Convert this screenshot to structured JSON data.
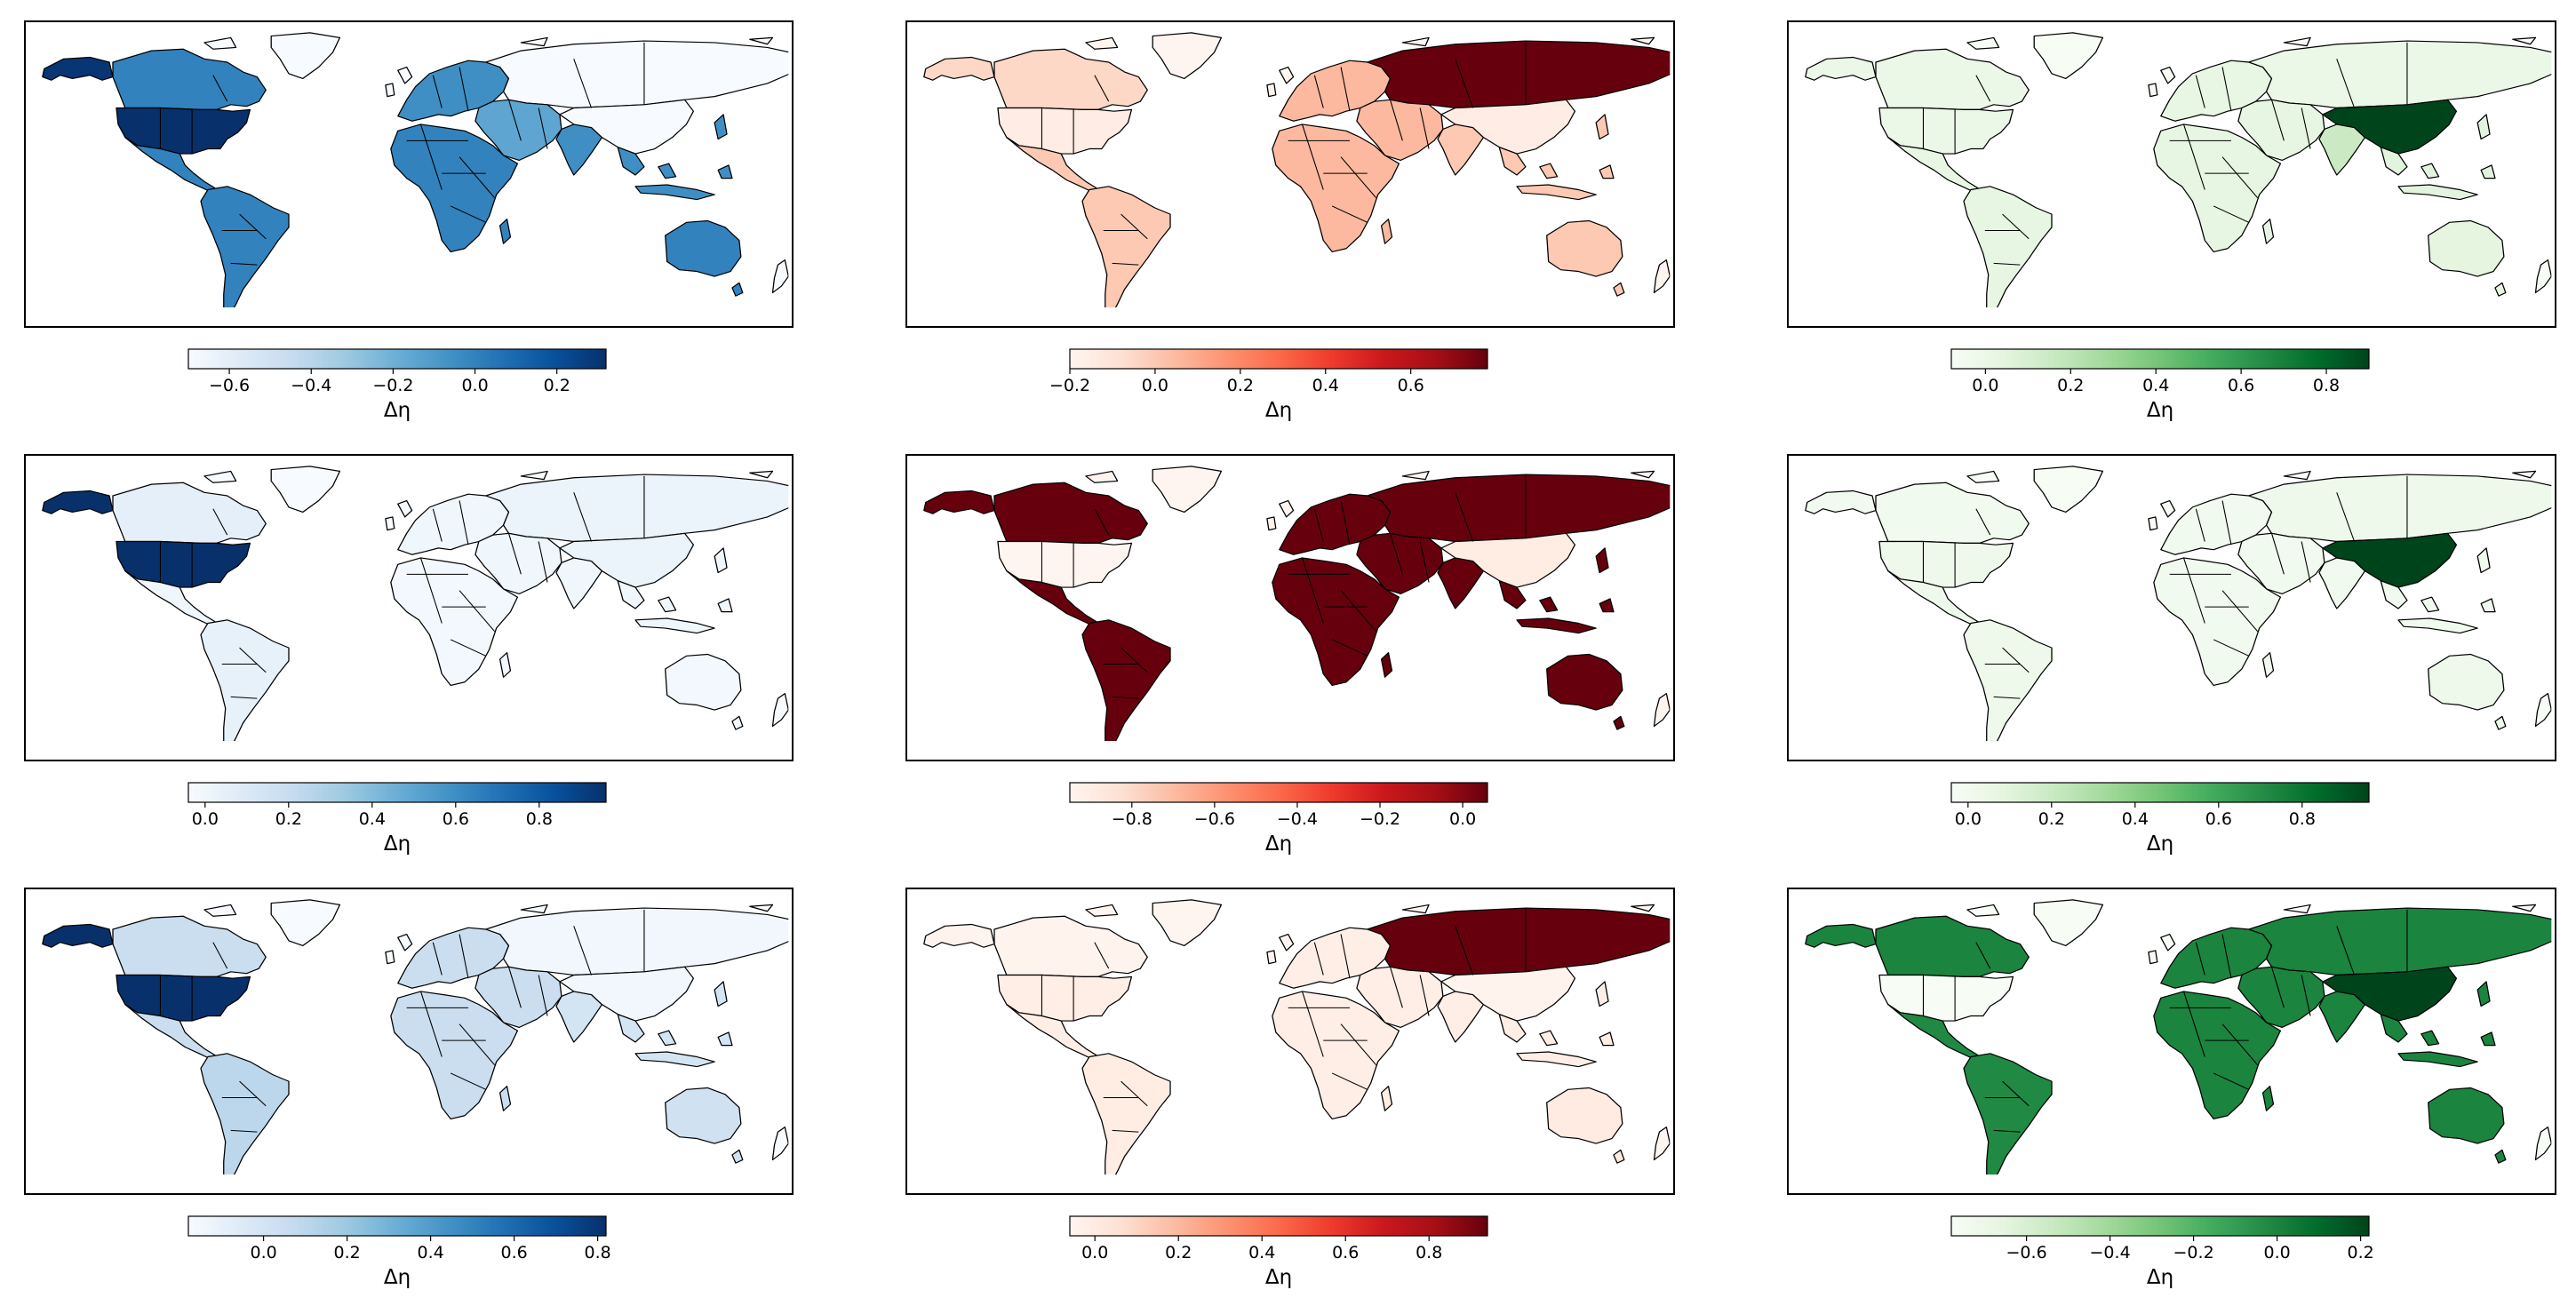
{
  "figure": {
    "panels": [
      {
        "id": "r1c1",
        "colormap": "Blues",
        "colorbar": {
          "min": -0.7,
          "max": 0.32,
          "ticks": [
            "−0.6",
            "−0.4",
            "−0.2",
            "0.0",
            "0.2"
          ],
          "tick_values": [
            -0.6,
            -0.4,
            -0.2,
            0.0,
            0.2
          ],
          "label": "Δη"
        },
        "region_values": {
          "usa": 0.32,
          "canada": 0.0,
          "alaska": 0.3,
          "greenland": -0.7,
          "mexico_central_america": 0.0,
          "south_america": 0.0,
          "europe": -0.05,
          "russia": -0.7,
          "africa": 0.0,
          "middle_east": -0.15,
          "india": -0.05,
          "china": -0.7,
          "se_asia": -0.05,
          "australia": 0.0,
          "other": -0.7
        }
      },
      {
        "id": "r1c2",
        "colormap": "Reds",
        "colorbar": {
          "min": -0.2,
          "max": 0.78,
          "ticks": [
            "−0.2",
            "0.0",
            "0.2",
            "0.4",
            "0.6"
          ],
          "tick_values": [
            -0.2,
            0.0,
            0.2,
            0.4,
            0.6
          ],
          "label": "Δη"
        },
        "region_values": {
          "usa": -0.15,
          "canada": -0.05,
          "alaska": -0.05,
          "greenland": -0.2,
          "mexico_central_america": 0.0,
          "south_america": 0.0,
          "europe": 0.05,
          "russia": 0.78,
          "africa": 0.05,
          "middle_east": 0.05,
          "india": 0.0,
          "china": -0.15,
          "se_asia": 0.0,
          "australia": 0.0,
          "other": -0.2
        }
      },
      {
        "id": "r1c3",
        "colormap": "Greens",
        "colorbar": {
          "min": -0.08,
          "max": 0.9,
          "ticks": [
            "0.0",
            "0.2",
            "0.4",
            "0.6",
            "0.8"
          ],
          "tick_values": [
            0.0,
            0.2,
            0.4,
            0.6,
            0.8
          ],
          "label": "Δη"
        },
        "region_values": {
          "usa": 0.0,
          "canada": 0.0,
          "alaska": 0.0,
          "greenland": -0.08,
          "mexico_central_america": 0.02,
          "south_america": 0.03,
          "europe": 0.02,
          "russia": 0.0,
          "africa": 0.03,
          "middle_east": 0.03,
          "india": 0.15,
          "china": 0.9,
          "se_asia": 0.05,
          "australia": 0.04,
          "other": -0.08
        }
      },
      {
        "id": "r2c1",
        "colormap": "Blues",
        "colorbar": {
          "min": -0.04,
          "max": 0.96,
          "ticks": [
            "0.0",
            "0.2",
            "0.4",
            "0.6",
            "0.8"
          ],
          "tick_values": [
            0.0,
            0.2,
            0.4,
            0.6,
            0.8
          ],
          "label": "Δη"
        },
        "region_values": {
          "usa": 0.96,
          "canada": 0.05,
          "alaska": 0.96,
          "greenland": -0.04,
          "mexico_central_america": 0.0,
          "south_america": 0.04,
          "europe": 0.0,
          "russia": 0.02,
          "africa": -0.02,
          "middle_east": 0.0,
          "india": 0.0,
          "china": 0.02,
          "se_asia": 0.0,
          "australia": -0.02,
          "other": -0.04
        }
      },
      {
        "id": "r2c2",
        "colormap": "Reds",
        "colorbar": {
          "min": -0.95,
          "max": 0.06,
          "ticks": [
            "−0.8",
            "−0.6",
            "−0.4",
            "−0.2",
            "0.0"
          ],
          "tick_values": [
            -0.8,
            -0.6,
            -0.4,
            -0.2,
            0.0
          ],
          "label": "Δη"
        },
        "region_values": {
          "usa": -0.95,
          "canada": 0.06,
          "alaska": 0.06,
          "greenland": -0.95,
          "mexico_central_america": 0.06,
          "south_america": 0.06,
          "europe": 0.06,
          "russia": 0.06,
          "africa": 0.06,
          "middle_east": 0.06,
          "india": 0.06,
          "china": -0.9,
          "se_asia": 0.06,
          "australia": 0.06,
          "other": -0.95
        }
      },
      {
        "id": "r2c3",
        "colormap": "Greens",
        "colorbar": {
          "min": -0.04,
          "max": 0.96,
          "ticks": [
            "0.0",
            "0.2",
            "0.4",
            "0.6",
            "0.8"
          ],
          "tick_values": [
            0.0,
            0.2,
            0.4,
            0.6,
            0.8
          ],
          "label": "Δη"
        },
        "region_values": {
          "usa": 0.02,
          "canada": 0.0,
          "alaska": 0.0,
          "greenland": -0.04,
          "mexico_central_america": 0.02,
          "south_america": 0.02,
          "europe": 0.0,
          "russia": 0.02,
          "africa": 0.0,
          "middle_east": 0.0,
          "india": 0.0,
          "china": 0.96,
          "se_asia": 0.0,
          "australia": 0.02,
          "other": -0.04
        }
      },
      {
        "id": "r3c1",
        "colormap": "Blues",
        "colorbar": {
          "min": -0.18,
          "max": 0.82,
          "ticks": [
            "0.0",
            "0.2",
            "0.4",
            "0.6",
            "0.8"
          ],
          "tick_values": [
            0.0,
            0.2,
            0.4,
            0.6,
            0.8
          ],
          "label": "Δη"
        },
        "region_values": {
          "usa": 0.82,
          "canada": 0.05,
          "alaska": 0.82,
          "greenland": -0.18,
          "mexico_central_america": 0.05,
          "south_america": 0.1,
          "europe": 0.05,
          "russia": -0.15,
          "africa": 0.05,
          "middle_east": 0.05,
          "india": 0.0,
          "china": -0.15,
          "se_asia": 0.0,
          "australia": 0.02,
          "other": -0.18
        }
      },
      {
        "id": "r3c2",
        "colormap": "Reds",
        "colorbar": {
          "min": -0.06,
          "max": 0.94,
          "ticks": [
            "0.0",
            "0.2",
            "0.4",
            "0.6",
            "0.8"
          ],
          "tick_values": [
            0.0,
            0.2,
            0.4,
            0.6,
            0.8
          ],
          "label": "Δη"
        },
        "region_values": {
          "usa": -0.02,
          "canada": -0.05,
          "alaska": -0.05,
          "greenland": -0.06,
          "mexico_central_america": -0.02,
          "south_america": -0.01,
          "europe": -0.02,
          "russia": 0.94,
          "africa": -0.02,
          "middle_east": -0.02,
          "india": -0.02,
          "china": -0.05,
          "se_asia": -0.02,
          "australia": 0.0,
          "other": -0.06
        }
      },
      {
        "id": "r3c3",
        "colormap": "Greens",
        "colorbar": {
          "min": -0.78,
          "max": 0.22,
          "ticks": [
            "−0.6",
            "−0.4",
            "−0.2",
            "0.0",
            "0.2"
          ],
          "tick_values": [
            -0.6,
            -0.4,
            -0.2,
            0.0,
            0.2
          ],
          "label": "Δη"
        },
        "region_values": {
          "usa": -0.78,
          "canada": 0.0,
          "alaska": 0.0,
          "greenland": -0.78,
          "mexico_central_america": -0.02,
          "south_america": -0.02,
          "europe": 0.0,
          "russia": 0.0,
          "africa": 0.0,
          "middle_east": 0.0,
          "india": 0.0,
          "china": 0.22,
          "se_asia": 0.0,
          "australia": 0.0,
          "other": -0.78
        }
      }
    ],
    "colormaps": {
      "Blues": [
        "#f7fbff",
        "#deebf7",
        "#c6dbef",
        "#9ecae1",
        "#6baed6",
        "#4292c6",
        "#2171b5",
        "#08519c",
        "#08306b"
      ],
      "Reds": [
        "#fff5f0",
        "#fee0d2",
        "#fcbba1",
        "#fc9272",
        "#fb6a4a",
        "#ef3b2c",
        "#cb181d",
        "#a50f15",
        "#67000d"
      ],
      "Greens": [
        "#f7fcf5",
        "#e5f5e0",
        "#c7e9c0",
        "#a1d99b",
        "#74c476",
        "#41ab5d",
        "#238b45",
        "#006d2c",
        "#00441b"
      ]
    }
  }
}
